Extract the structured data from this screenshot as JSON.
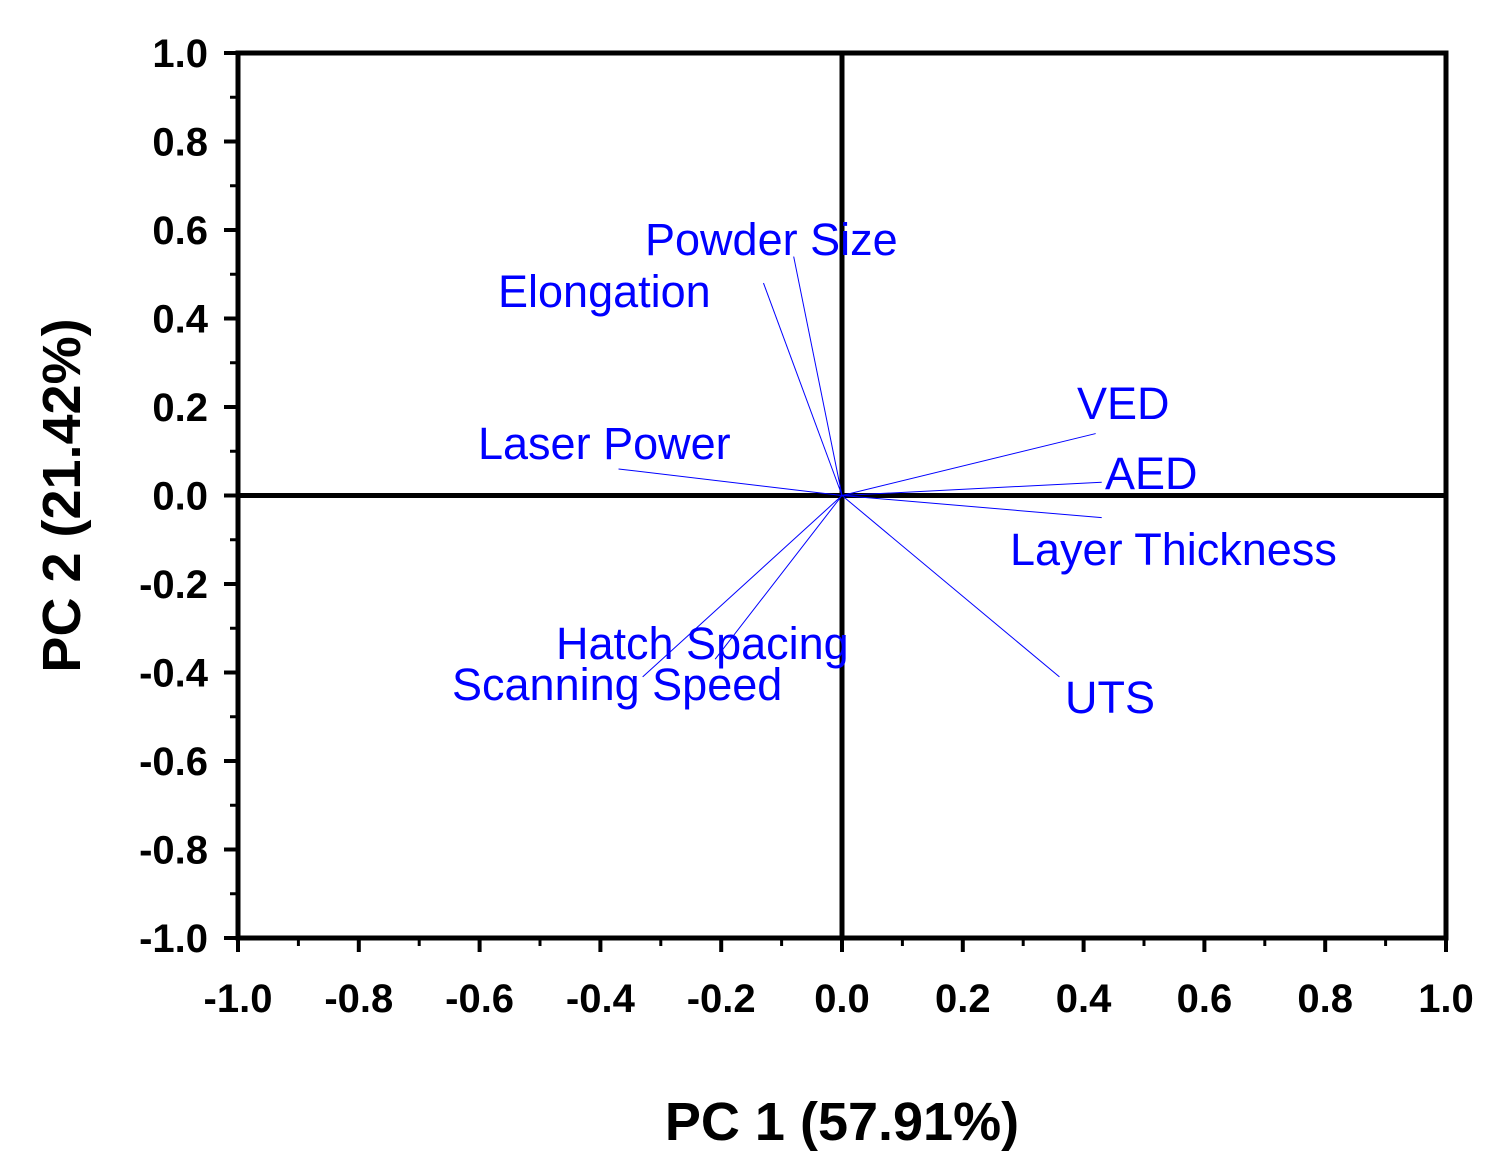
{
  "chart_data": {
    "type": "scatter",
    "subtype": "pca-loading-plot",
    "xlabel": "PC 1 (57.91%)",
    "ylabel": "PC 2 (21.42%)",
    "xlim": [
      -1.0,
      1.0
    ],
    "ylim": [
      -1.0,
      1.0
    ],
    "x_ticks": [
      "-1.0",
      "-0.8",
      "-0.6",
      "-0.4",
      "-0.2",
      "0.0",
      "0.2",
      "0.4",
      "0.6",
      "0.8",
      "1.0"
    ],
    "y_ticks": [
      "1.0",
      "0.8",
      "0.6",
      "0.4",
      "0.2",
      "0.0",
      "-0.2",
      "-0.4",
      "-0.6",
      "-0.8",
      "-1.0"
    ],
    "grid": false,
    "line_color": "#0000ff",
    "label_color": "#0000ff",
    "loadings": [
      {
        "name": "Powder Size",
        "x": -0.08,
        "y": 0.54
      },
      {
        "name": "Elongation",
        "x": -0.13,
        "y": 0.48
      },
      {
        "name": "Laser Power",
        "x": -0.37,
        "y": 0.06
      },
      {
        "name": "VED",
        "x": 0.42,
        "y": 0.14
      },
      {
        "name": "AED",
        "x": 0.43,
        "y": 0.03
      },
      {
        "name": "Layer Thickness",
        "x": 0.43,
        "y": -0.05
      },
      {
        "name": "UTS",
        "x": 0.36,
        "y": -0.41
      },
      {
        "name": "Hatch Spacing",
        "x": -0.21,
        "y": -0.37
      },
      {
        "name": "Scanning Speed",
        "x": -0.33,
        "y": -0.41
      }
    ]
  }
}
